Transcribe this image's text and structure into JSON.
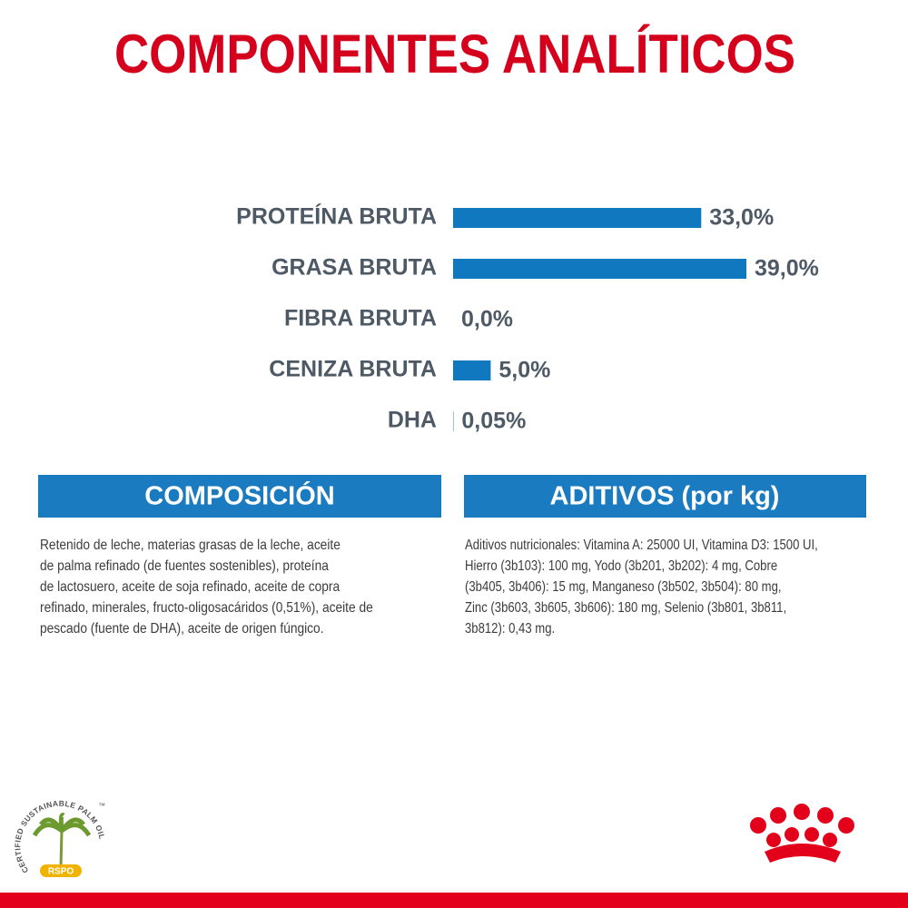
{
  "chart_data": {
    "type": "bar",
    "orientation": "horizontal",
    "title": "COMPONENTES ANALÍTICOS",
    "categories": [
      "PROTEÍNA BRUTA",
      "GRASA BRUTA",
      "FIBRA BRUTA",
      "CENIZA BRUTA",
      "DHA"
    ],
    "values": [
      33,
      39,
      0,
      5,
      0.05
    ],
    "value_labels": [
      "33,0%",
      "39,0%",
      "0,0%",
      "5,0%",
      "0,05%"
    ],
    "color": "#0f78bf"
  },
  "composition": {
    "title": "COMPOSICIÓN",
    "lines": [
      "Retenido de leche, materias grasas de la leche, aceite",
      "de palma refinado (de fuentes sostenibles), proteína",
      "de lactosuero, aceite de soja refinado, aceite de copra",
      "refinado, minerales, fructo-oligosacáridos (0,51%), aceite de",
      "pescado (fuente de DHA), aceite de origen fúngico."
    ]
  },
  "additives": {
    "title": "ADITIVOS (por kg)",
    "lines": [
      "Aditivos nutricionales: Vitamina A: 25000 UI, Vitamina D3: 1500 UI,",
      "Hierro (3b103): 100 mg, Yodo (3b201, 3b202): 4 mg, Cobre",
      "(3b405, 3b406): 15 mg, Manganeso (3b502, 3b504): 80 mg,",
      "Zinc (3b603, 3b605, 3b606): 180 mg, Selenio (3b801, 3b811,",
      "3b812): 0,43 mg."
    ]
  },
  "rspo": {
    "ring_text": "CERTIFIED SUSTAINABLE PALM OIL",
    "trademark": "™",
    "badge": "RSPO"
  }
}
